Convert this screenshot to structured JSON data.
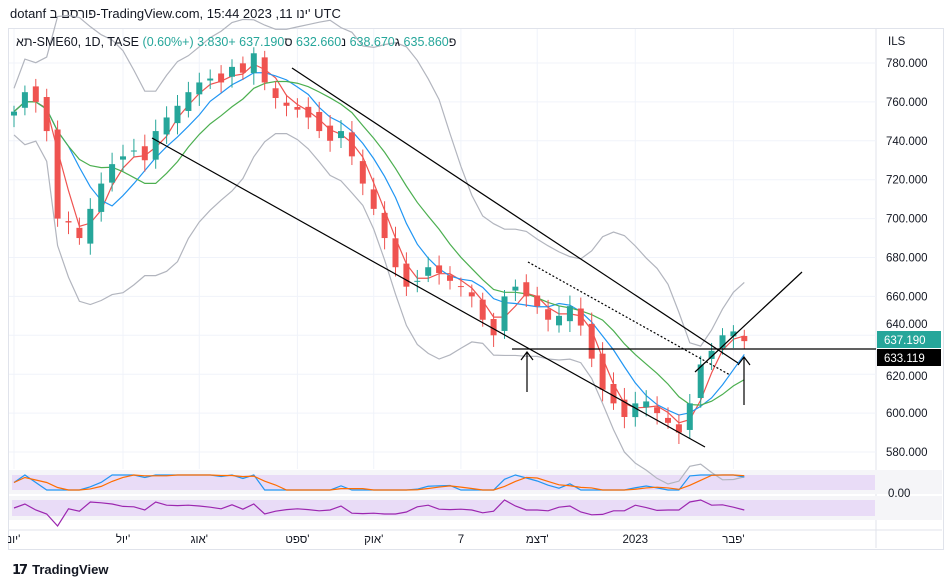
{
  "header": {
    "published": "dotanf פורסם ב-TradingView.com, 15:44 2023 ,11 ינו' UTC"
  },
  "legend": {
    "symbol": "תא-SME60, 1D, TASE",
    "o_label": "פ",
    "o": "635.860",
    "h_label": "ג",
    "h": "638.670",
    "l_label": "נ",
    "l": "632.660",
    "c_label": "ס",
    "c": "637.190",
    "change": "+3.830 (+0.60%)"
  },
  "colors": {
    "up": "#26a69a",
    "down": "#ef5350",
    "ma_fast": "#ef5350",
    "ma_mid": "#2196f3",
    "ma_slow": "#4caf50",
    "bands": "#b2b5be",
    "stoch_k": "#2196f3",
    "stoch_d": "#ff6d00",
    "rsi": "#9c27b0"
  },
  "footer": {
    "brand": "TradingView"
  },
  "chart_data": {
    "type": "candlestick",
    "currency_label": "ILS",
    "ylim": [
      570,
      790
    ],
    "y_ticks": [
      "780.000",
      "760.000",
      "740.000",
      "720.000",
      "700.000",
      "680.000",
      "660.000",
      "640.000",
      "620.000",
      "600.000",
      "580.000"
    ],
    "y_tick_values": [
      780,
      760,
      740,
      720,
      700,
      680,
      660,
      640,
      620,
      600,
      580
    ],
    "last_price": "637.190",
    "last_price_value": 637.19,
    "horizontal_line": "633.119",
    "horizontal_line_value": 633.119,
    "indicator_label": "0.00",
    "x_ticks": [
      "יונ'",
      "יול'",
      "אוג'",
      "ספט'",
      "אוק'",
      "7",
      "דצמ'",
      "2023",
      "פבר'"
    ],
    "x_tick_index": [
      0,
      10,
      17,
      26,
      33,
      41,
      48,
      57,
      66
    ],
    "closes": [
      755,
      765,
      760,
      745,
      700,
      698,
      690,
      705,
      718,
      728,
      732,
      735,
      730,
      745,
      752,
      758,
      765,
      770,
      772,
      770,
      778,
      775,
      785,
      770,
      762,
      758,
      756,
      752,
      745,
      740,
      745,
      732,
      718,
      705,
      690,
      675,
      665,
      668,
      675,
      672,
      668,
      665,
      660,
      648,
      640,
      660,
      665,
      660,
      655,
      648,
      650,
      655,
      645,
      628,
      612,
      605,
      598,
      605,
      606,
      600,
      595,
      590,
      605,
      625,
      632,
      640,
      642,
      637
    ]
  }
}
